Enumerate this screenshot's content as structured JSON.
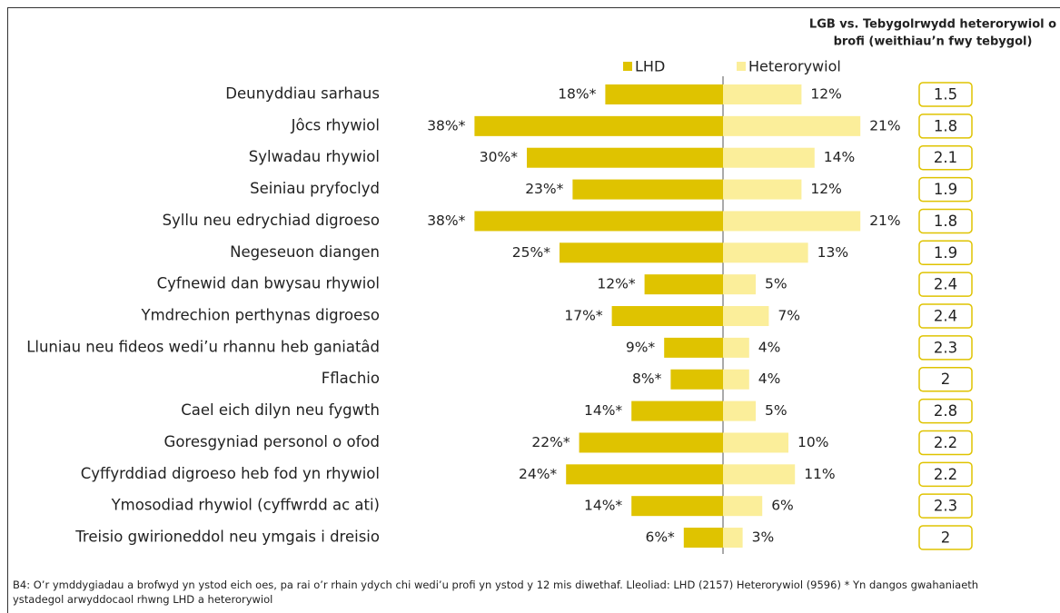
{
  "chart_data": {
    "type": "butterfly_bar",
    "categories": [
      "Deunyddiau sarhaus",
      "Jôcs rhywiol",
      "Sylwadau rhywiol",
      "Seiniau pryfoclyd",
      "Syllu neu edrychiad digroeso",
      "Negeseuon diangen",
      "Cyfnewid dan bwysau rhywiol",
      "Ymdrechion perthynas digroeso",
      "Lluniau neu fideos wedi’u rhannu heb ganiatâd",
      "Fflachio",
      "Cael eich dilyn neu fygwth",
      "Goresgyniad personol o ofod",
      "Cyffyrddiad digroeso heb fod yn rhywiol",
      "Ymosodiad rhywiol (cyffwrdd ac ati)",
      "Treisio gwirioneddol neu ymgais i dreisio"
    ],
    "series": [
      {
        "name": "LHD",
        "color": "#dfc300",
        "values": [
          18,
          38,
          30,
          23,
          38,
          25,
          12,
          17,
          9,
          8,
          14,
          22,
          24,
          14,
          6
        ],
        "value_labels": [
          "18%*",
          "38%*",
          "30%*",
          "23%*",
          "38%*",
          "25%*",
          "12%*",
          "17%*",
          "9%*",
          "8%*",
          "14%*",
          "22%*",
          "24%*",
          "14%*",
          "6%*"
        ]
      },
      {
        "name": "Heterorywiol",
        "color": "#fbee9a",
        "values": [
          12,
          21,
          14,
          12,
          21,
          13,
          5,
          7,
          4,
          4,
          5,
          10,
          11,
          6,
          3
        ],
        "value_labels": [
          "12%",
          "21%",
          "14%",
          "12%",
          "21%",
          "13%",
          "5%",
          "7%",
          "4%",
          "4%",
          "5%",
          "10%",
          "11%",
          "6%",
          "3%"
        ]
      }
    ],
    "ratio_header": [
      "LGB vs. Tebygolrwydd heterorywiol o",
      "brofi (weithiau’n fwy tebygol)"
    ],
    "ratios": [
      1.5,
      1.8,
      2.1,
      1.9,
      1.8,
      1.9,
      2.4,
      2.4,
      2.3,
      2,
      2.8,
      2.2,
      2.2,
      2.3,
      2
    ],
    "footnote": "B4: O’r ymddygiadau a brofwyd yn ystod eich oes, pa rai o’r rhain ydych chi wedi’u profi yn ystod y 12 mis diwethaf. Lleoliad: LHD (2157) Heterorywiol (9596) * Yn dangos gwahaniaeth ystadegol arwyddocaol rhwng LHD a heterorywiol"
  }
}
